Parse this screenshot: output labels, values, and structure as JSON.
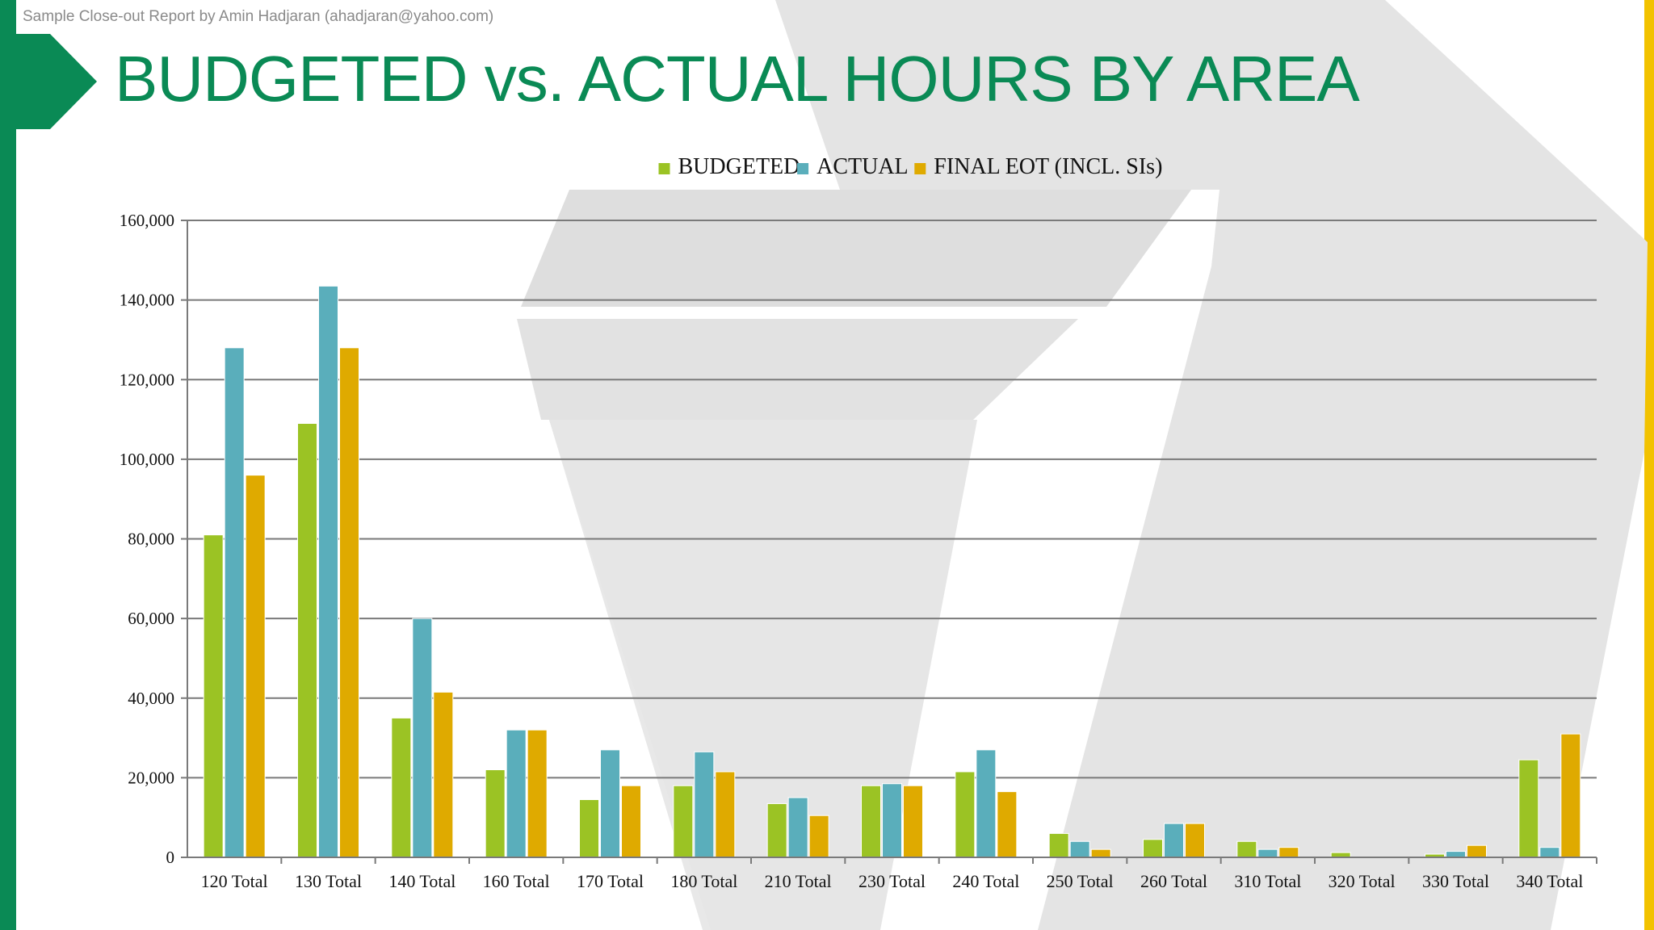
{
  "header": {
    "watermark": "Sample Close-out Report by Amin Hadjaran (ahadjaran@yahoo.com)",
    "title": "BUDGETED vs. ACTUAL HOURS BY AREA"
  },
  "colors": {
    "brand_green": "#0a8a55",
    "accent_yellow": "#f2c200",
    "budgeted": "#9bc324",
    "actual": "#5aaebb",
    "final_eot": "#dfaa00"
  },
  "chart_data": {
    "type": "bar",
    "title": "",
    "xlabel": "",
    "ylabel": "",
    "ylim": [
      0,
      160000
    ],
    "yticks": [
      0,
      20000,
      40000,
      60000,
      80000,
      100000,
      120000,
      140000,
      160000
    ],
    "ytick_labels": [
      "0",
      "20,000",
      "40,000",
      "60,000",
      "80,000",
      "100,000",
      "120,000",
      "140,000",
      "160,000"
    ],
    "legend_position": "top-center",
    "categories": [
      "120 Total",
      "130 Total",
      "140 Total",
      "160 Total",
      "170 Total",
      "180 Total",
      "210 Total",
      "230 Total",
      "240 Total",
      "250 Total",
      "260 Total",
      "310 Total",
      "320 Total",
      "330 Total",
      "340 Total"
    ],
    "series": [
      {
        "name": "BUDGETED",
        "color": "#9bc324",
        "values": [
          81000,
          109000,
          35000,
          22000,
          14500,
          18000,
          13500,
          18000,
          21500,
          6000,
          4500,
          4000,
          1200,
          800,
          24500
        ]
      },
      {
        "name": "ACTUAL",
        "color": "#5aaebb",
        "values": [
          128000,
          143500,
          60000,
          32000,
          27000,
          26500,
          15000,
          18500,
          27000,
          4000,
          8500,
          2000,
          0,
          1500,
          2500
        ]
      },
      {
        "name": "FINAL EOT (INCL. SIs)",
        "color": "#dfaa00",
        "values": [
          96000,
          128000,
          41500,
          32000,
          18000,
          21500,
          10500,
          18000,
          16500,
          2000,
          8500,
          2500,
          0,
          3000,
          31000
        ]
      }
    ]
  }
}
